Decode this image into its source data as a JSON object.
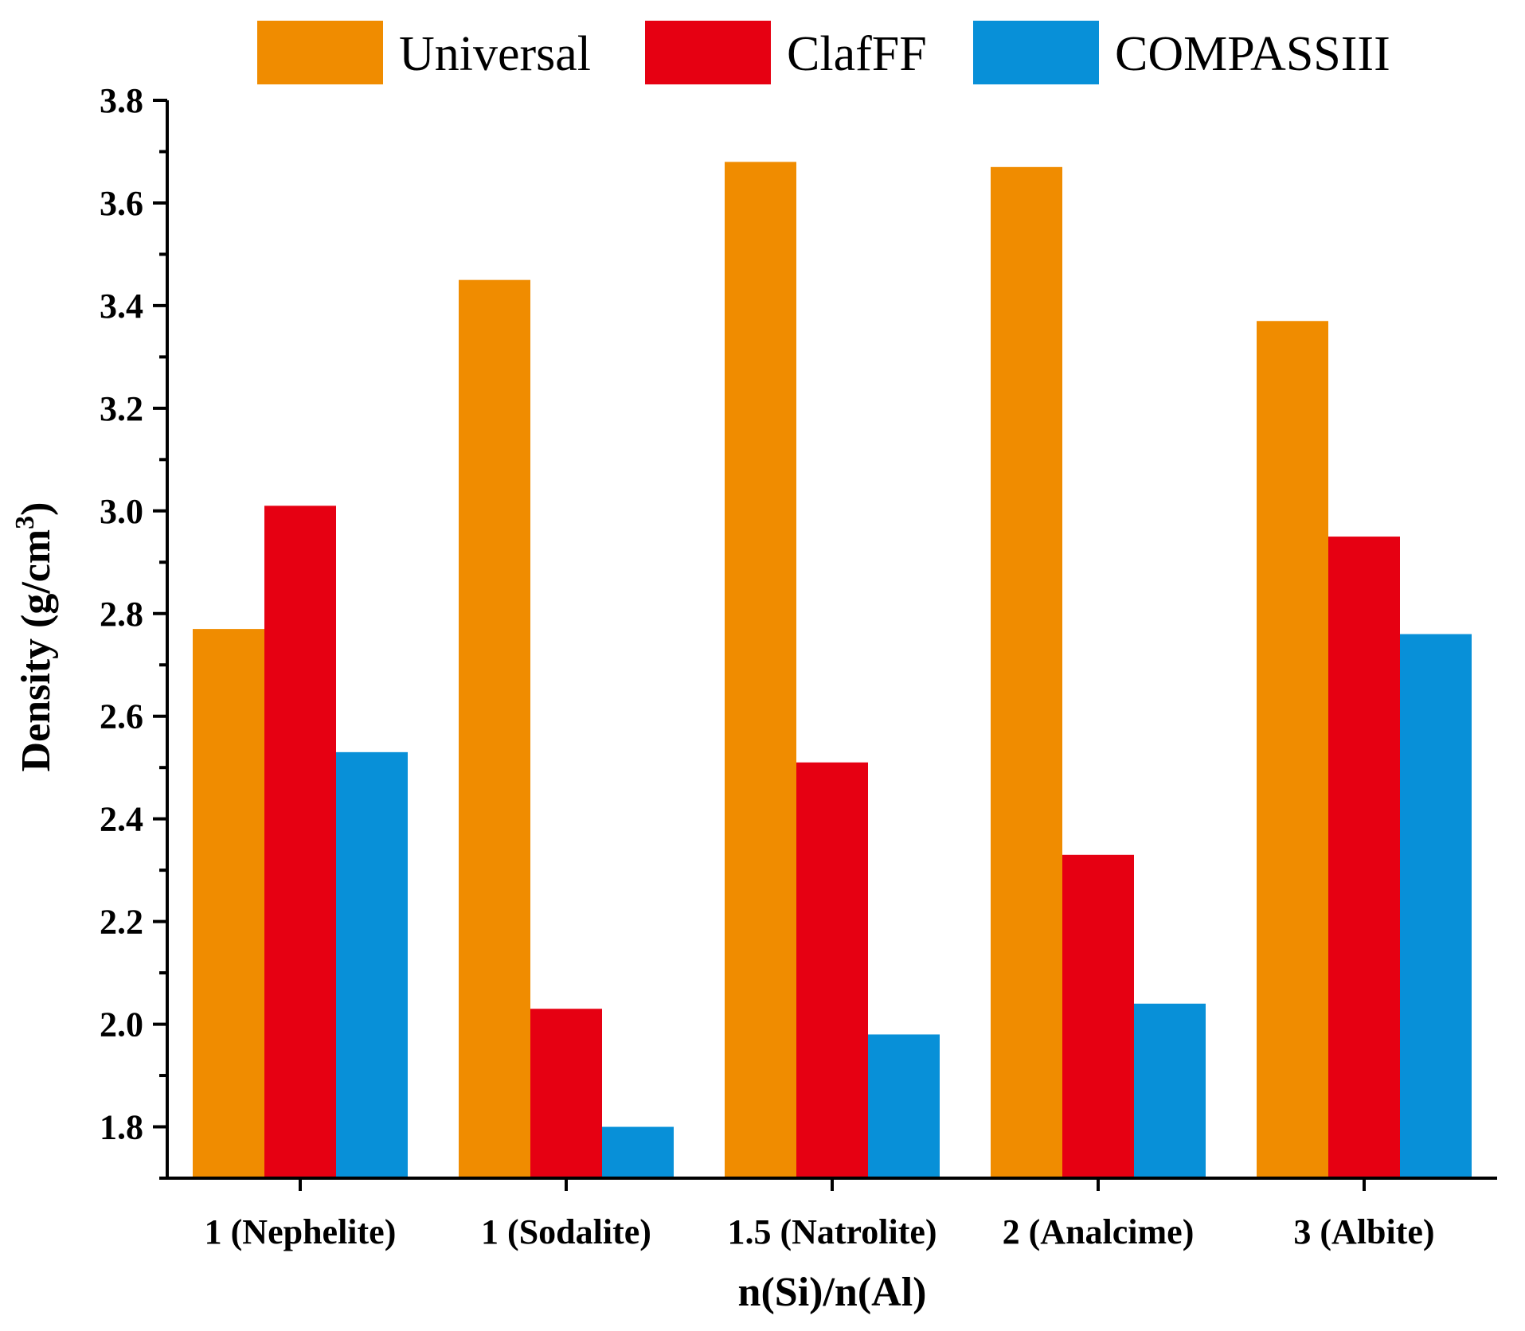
{
  "chart_data": {
    "type": "bar",
    "title": "",
    "xlabel": "n(Si)/n(Al)",
    "ylabel": "Density (g/cm",
    "ylabel_superscript": "3",
    "ylabel_suffix": ")",
    "ylim": [
      1.7,
      3.8
    ],
    "yticks": [
      "1.8",
      "2.0",
      "2.2",
      "2.4",
      "2.6",
      "2.8",
      "3.0",
      "3.2",
      "3.4",
      "3.6",
      "3.8"
    ],
    "categories": [
      "1 (Nephelite)",
      "1 (Sodalite)",
      "1.5 (Natrolite)",
      "2 (Analcime)",
      "3 (Albite)"
    ],
    "series": [
      {
        "name": "Universal",
        "color": "#f08c00",
        "values": [
          2.77,
          3.45,
          3.68,
          3.67,
          3.37
        ]
      },
      {
        "name": "ClafFF",
        "color": "#e60012",
        "values": [
          3.01,
          2.03,
          2.51,
          2.33,
          2.95
        ]
      },
      {
        "name": "COMPASSIII",
        "color": "#0890d8",
        "values": [
          2.53,
          1.8,
          1.98,
          2.04,
          2.76
        ]
      }
    ],
    "legend_position": "top",
    "grid": false
  }
}
